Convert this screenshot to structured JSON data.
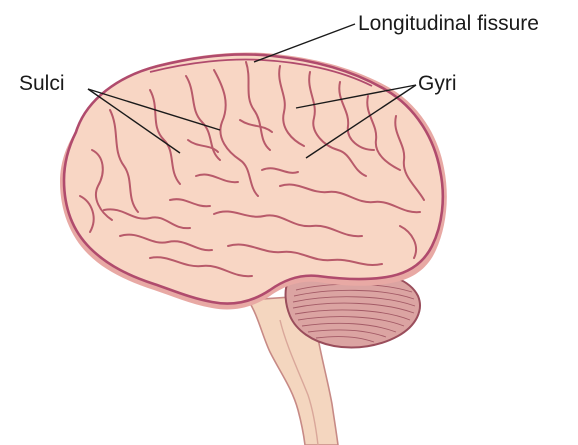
{
  "labels": {
    "longitudinal_fissure": "Longitudinal fissure",
    "sulci": "Sulci",
    "gyri": "Gyri"
  },
  "colors": {
    "cortex_fill": "#f8d6c4",
    "cortex_outline": "#b04b6d",
    "cortex_shadow": "#e8a9a4",
    "gyrus_line": "#b85a6a",
    "cerebellum_fill": "#dba4a2",
    "cerebellum_line": "#9a4e5c",
    "brainstem_fill": "#f4d6bf",
    "leader_line": "#1a1a1a"
  }
}
